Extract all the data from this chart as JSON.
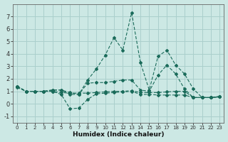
{
  "xlabel": "Humidex (Indice chaleur)",
  "background_color": "#cce8e4",
  "grid_color": "#aacfcc",
  "line_color": "#1a6b5a",
  "xlim": [
    -0.5,
    23.5
  ],
  "ylim": [
    -1.5,
    8.0
  ],
  "xticks": [
    0,
    1,
    2,
    3,
    4,
    5,
    6,
    7,
    8,
    9,
    10,
    11,
    12,
    13,
    14,
    15,
    16,
    17,
    18,
    19,
    20,
    21,
    22,
    23
  ],
  "yticks": [
    -1,
    0,
    1,
    2,
    3,
    4,
    5,
    6,
    7
  ],
  "s1_y": [
    1.4,
    1.0,
    1.0,
    1.0,
    1.1,
    1.1,
    0.75,
    0.75,
    1.9,
    2.8,
    3.9,
    5.3,
    4.3,
    7.3,
    3.3,
    1.1,
    3.8,
    4.3,
    3.1,
    2.4,
    1.2,
    0.5,
    0.5,
    0.6
  ],
  "s2_y": [
    1.4,
    1.0,
    1.0,
    1.0,
    1.1,
    1.1,
    0.9,
    0.75,
    1.65,
    1.7,
    1.7,
    1.8,
    1.9,
    1.9,
    1.1,
    1.0,
    2.3,
    3.1,
    2.4,
    1.2,
    0.5,
    0.5,
    0.5,
    0.55
  ],
  "s3_y": [
    1.4,
    1.0,
    1.0,
    1.0,
    1.0,
    0.75,
    -0.4,
    -0.35,
    0.35,
    0.8,
    0.85,
    0.9,
    0.95,
    1.0,
    0.75,
    0.75,
    0.7,
    0.7,
    0.7,
    0.7,
    0.5,
    0.5,
    0.5,
    0.55
  ],
  "s4_y": [
    1.3,
    1.0,
    1.0,
    1.0,
    1.0,
    0.9,
    0.85,
    0.85,
    0.85,
    0.9,
    0.95,
    1.0,
    1.0,
    1.05,
    0.9,
    0.9,
    0.9,
    0.95,
    1.0,
    1.0,
    0.5,
    0.5,
    0.5,
    0.55
  ]
}
